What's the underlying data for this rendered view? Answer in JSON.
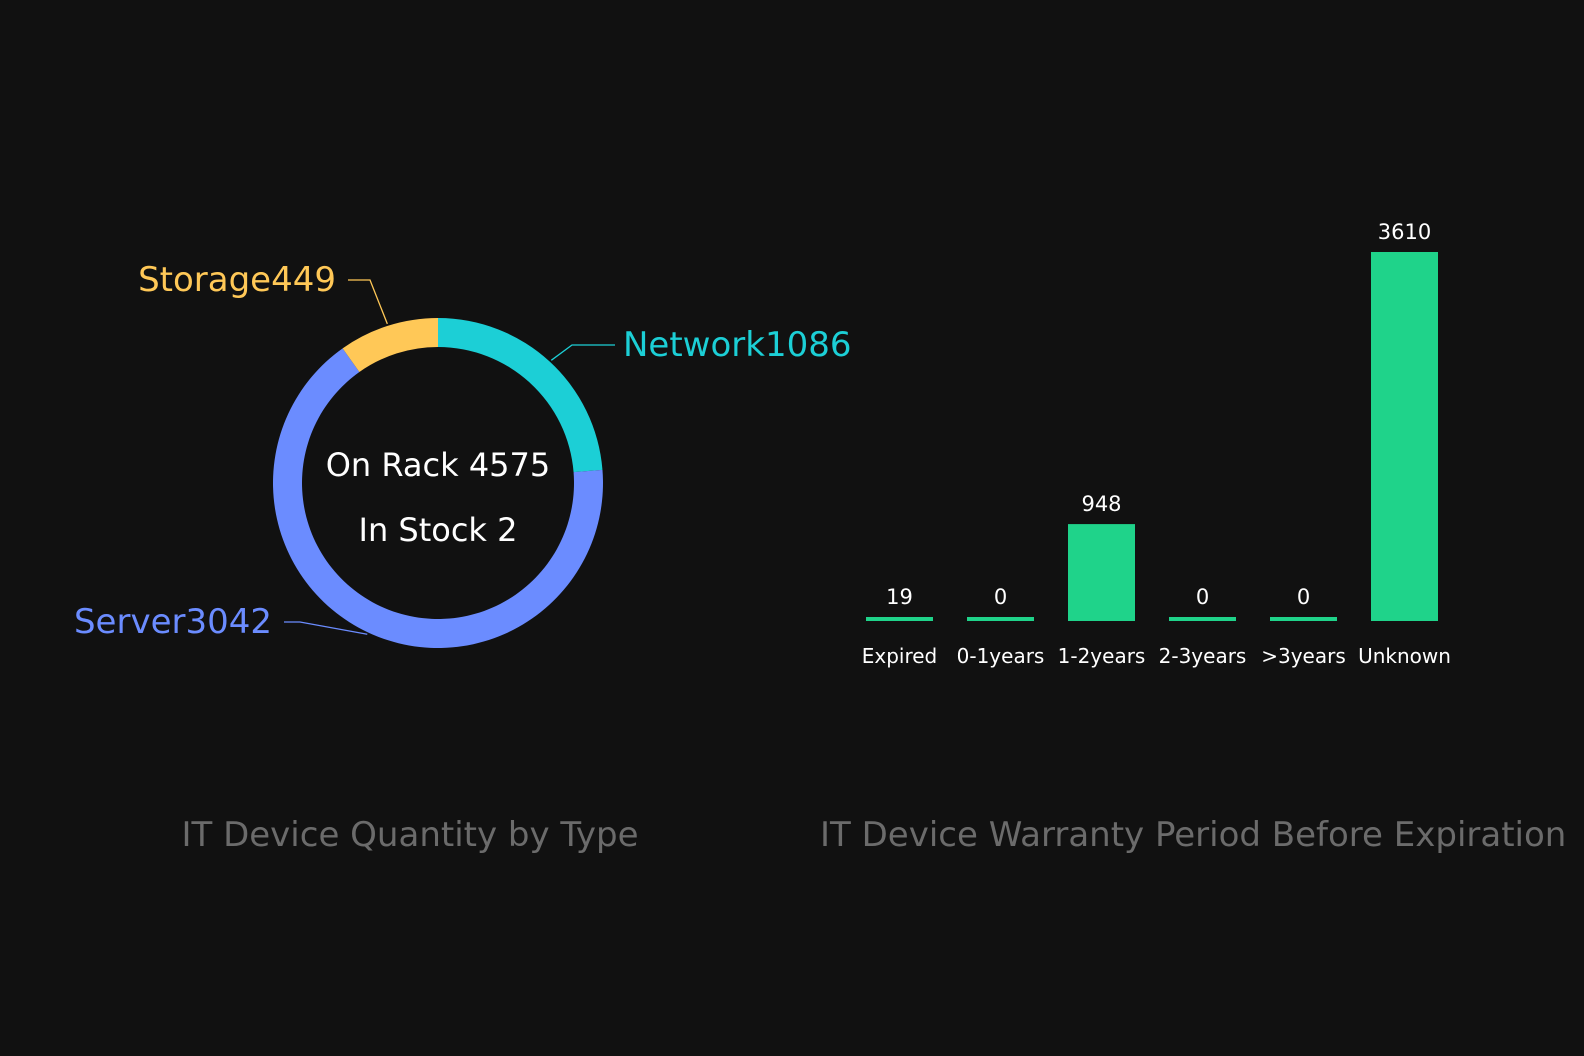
{
  "chart_data": [
    {
      "type": "pie",
      "variant": "donut",
      "title": "IT Device Quantity by Type",
      "center_lines": [
        "On Rack 4575",
        "In Stock 2"
      ],
      "series": [
        {
          "name": "Network",
          "label": "Network1086",
          "value": 1086,
          "color": "#1ccfd6"
        },
        {
          "name": "Server",
          "label": "Server3042",
          "value": 3042,
          "color": "#6b8cff"
        },
        {
          "name": "Storage",
          "label": "Storage449",
          "value": 449,
          "color": "#ffc857"
        }
      ]
    },
    {
      "type": "bar",
      "title": "IT Device Warranty Period Before Expiration",
      "categories": [
        "Expired",
        "0-1years",
        "1-2years",
        "2-3years",
        ">3years",
        "Unknown"
      ],
      "values": [
        19,
        0,
        948,
        0,
        0,
        3610
      ],
      "color": "#1fd38a",
      "grid": false
    }
  ],
  "colors": {
    "background": "#111111",
    "title_text": "#6b6b6b",
    "center_text": "#ffffff",
    "bar_label_text": "#ffffff"
  }
}
